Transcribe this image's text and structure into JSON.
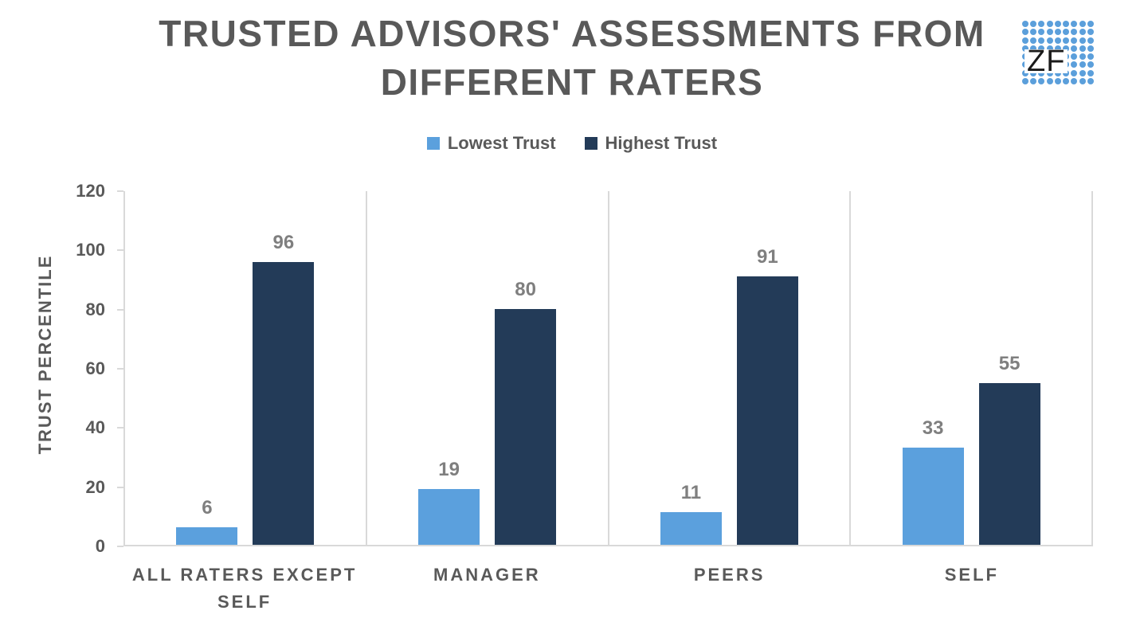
{
  "chart_data": {
    "type": "bar",
    "title": "TRUSTED ADVISORS' ASSESSMENTS FROM DIFFERENT RATERS",
    "categories": [
      "ALL RATERS EXCEPT SELF",
      "MANAGER",
      "PEERS",
      "SELF"
    ],
    "series": [
      {
        "name": "Lowest Trust",
        "color": "#5BA0DD",
        "values": [
          6,
          19,
          11,
          33
        ]
      },
      {
        "name": "Highest Trust",
        "color": "#233B58",
        "values": [
          96,
          80,
          91,
          55
        ]
      }
    ],
    "xlabel": "",
    "ylabel": "TRUST PERCENTILE",
    "ylim": [
      0,
      120
    ],
    "yticks": [
      0,
      20,
      40,
      60,
      80,
      100,
      120
    ],
    "grid": "vertical category separator lines only",
    "legend_position": "top center",
    "value_labels": true
  },
  "logo": {
    "text": "ZF",
    "rows": 8,
    "cols": 9
  },
  "colors": {
    "lowest_trust": "#5BA0DD",
    "highest_trust": "#233B58",
    "heading_text": "#595959",
    "value_label_text": "#7F7F7F",
    "axis_line": "#D9D9D9",
    "logo_dot": "#5B9FDB",
    "logo_text": "#1A1A1A",
    "background": "#FFFFFF"
  }
}
